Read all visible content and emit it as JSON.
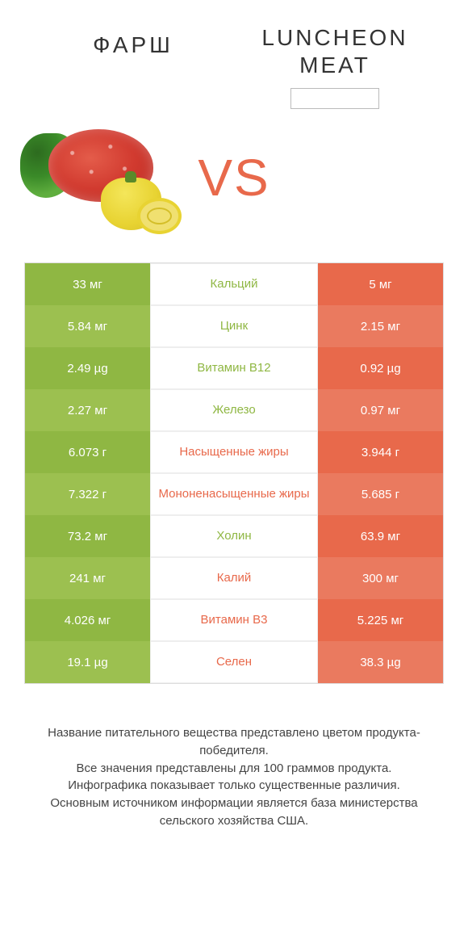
{
  "colors": {
    "left_primary": "#8fb743",
    "left_alt": "#9cc050",
    "right_primary": "#e8694b",
    "right_alt": "#ea7a5f",
    "vs": "#e8694b",
    "mid_left_text": "#8fb743",
    "mid_right_text": "#e8694b"
  },
  "header": {
    "left_title": "ФАРШ",
    "right_title": "LUNCHEON MEAT",
    "vs": "VS"
  },
  "rows": [
    {
      "label": "Кальций",
      "left": "33 мг",
      "right": "5 мг",
      "winner": "left"
    },
    {
      "label": "Цинк",
      "left": "5.84 мг",
      "right": "2.15 мг",
      "winner": "left"
    },
    {
      "label": "Витамин B12",
      "left": "2.49 µg",
      "right": "0.92 µg",
      "winner": "left"
    },
    {
      "label": "Железо",
      "left": "2.27 мг",
      "right": "0.97 мг",
      "winner": "left"
    },
    {
      "label": "Насыщенные жиры",
      "left": "6.073 г",
      "right": "3.944 г",
      "winner": "right"
    },
    {
      "label": "Мононенасыщенные жиры",
      "left": "7.322 г",
      "right": "5.685 г",
      "winner": "right"
    },
    {
      "label": "Холин",
      "left": "73.2 мг",
      "right": "63.9 мг",
      "winner": "left"
    },
    {
      "label": "Калий",
      "left": "241 мг",
      "right": "300 мг",
      "winner": "right"
    },
    {
      "label": "Витамин B3",
      "left": "4.026 мг",
      "right": "5.225 мг",
      "winner": "right"
    },
    {
      "label": "Селен",
      "left": "19.1 µg",
      "right": "38.3 µg",
      "winner": "right"
    }
  ],
  "footer": {
    "line1": "Название питательного вещества представлено цветом продукта-победителя.",
    "line2": "Все значения представлены для 100 граммов продукта.",
    "line3": "Инфографика показывает только существенные различия.",
    "line4": "Основным источником информации является база министерства сельского хозяйства США."
  }
}
